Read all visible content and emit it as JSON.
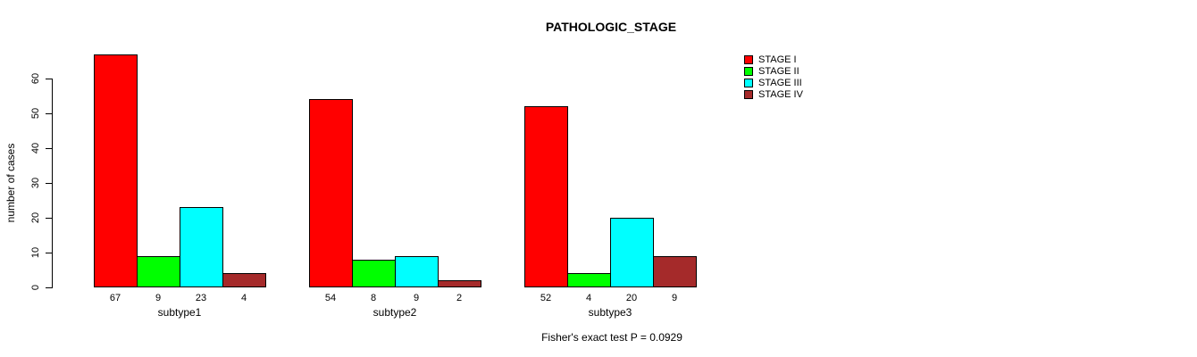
{
  "chart_data": {
    "type": "bar",
    "title": "PATHOLOGIC_STAGE",
    "ylabel": "number of cases",
    "xlabel": "",
    "ylim": [
      0,
      60
    ],
    "yticks": [
      "0",
      "10",
      "20",
      "30",
      "40",
      "50",
      "60"
    ],
    "ytick_values": [
      0,
      10,
      20,
      30,
      40,
      50,
      60
    ],
    "categories": [
      "subtype1",
      "subtype2",
      "subtype3"
    ],
    "series": [
      {
        "name": "STAGE I",
        "color": "#FF0000",
        "values": [
          67,
          54,
          52
        ]
      },
      {
        "name": "STAGE II",
        "color": "#00FF00",
        "values": [
          9,
          8,
          4
        ]
      },
      {
        "name": "STAGE III",
        "color": "#00FFFF",
        "values": [
          23,
          9,
          20
        ]
      },
      {
        "name": "STAGE IV",
        "color": "#A52A2A",
        "values": [
          4,
          2,
          9
        ]
      }
    ],
    "bar_value_labels": [
      [
        "67",
        "9",
        "23",
        "4"
      ],
      [
        "54",
        "8",
        "9",
        "2"
      ],
      [
        "52",
        "4",
        "20",
        "9"
      ]
    ],
    "legend_position": "top-right",
    "grid": false,
    "annotation": "Fisher's exact test P = 0.0929"
  }
}
